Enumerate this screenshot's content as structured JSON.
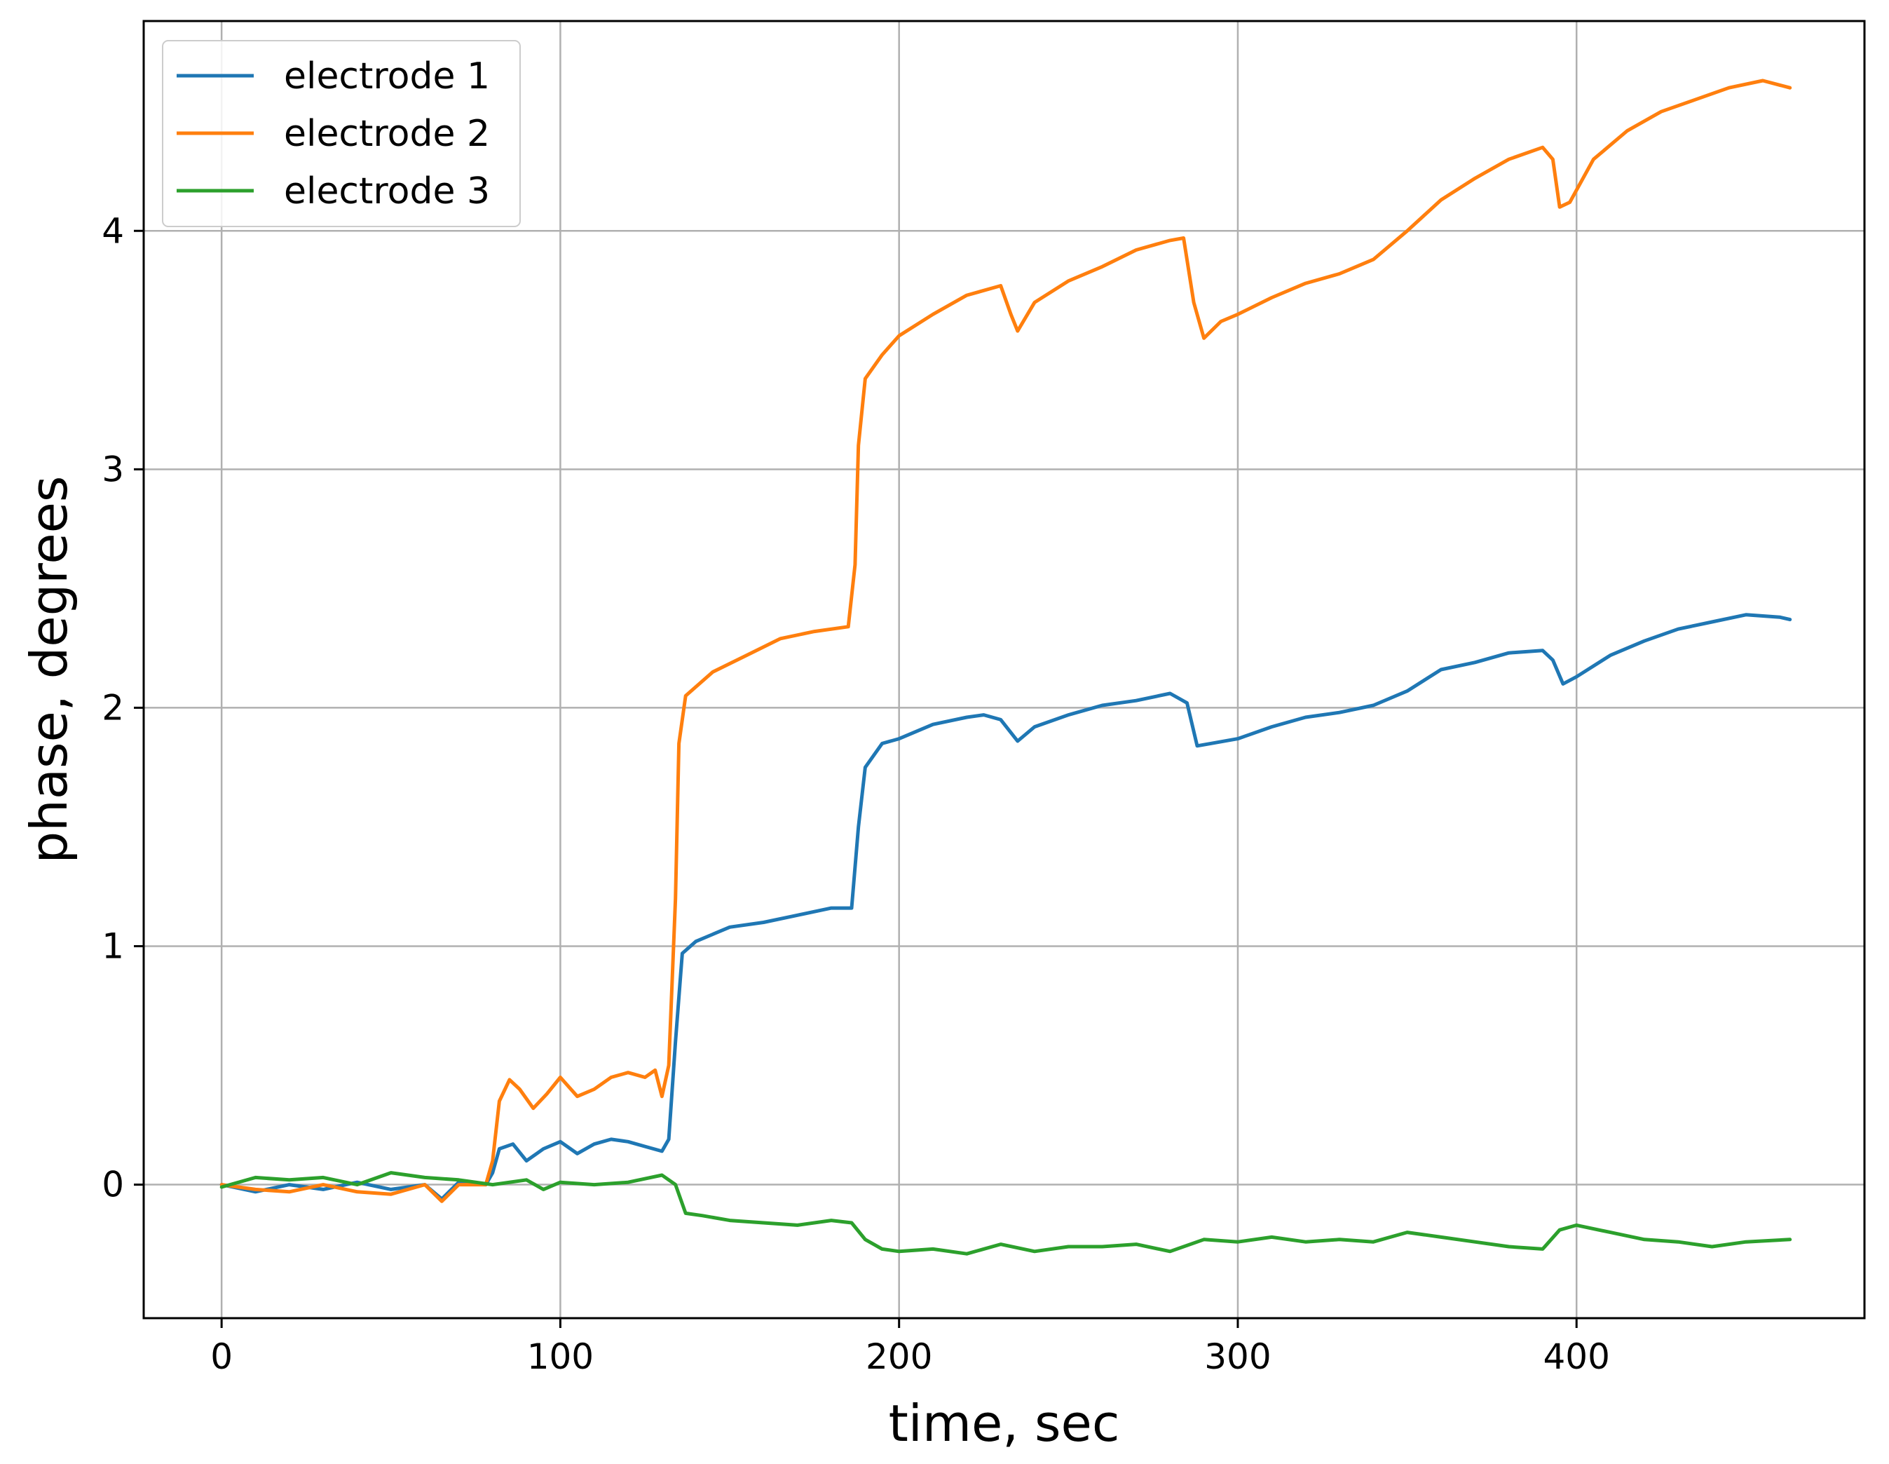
{
  "chart_data": {
    "type": "line",
    "title": "",
    "xlabel": "time, sec",
    "ylabel": "phase, degrees",
    "xlim": [
      -23,
      485
    ],
    "ylim": [
      -0.56,
      4.88
    ],
    "x_ticks": [
      0,
      100,
      200,
      300,
      400
    ],
    "y_ticks": [
      0,
      1,
      2,
      3,
      4
    ],
    "grid": true,
    "legend_position": "upper-left",
    "series": [
      {
        "name": "electrode 1",
        "color": "#1f77b4",
        "points": [
          [
            0,
            0.0
          ],
          [
            10,
            -0.03
          ],
          [
            20,
            0.0
          ],
          [
            30,
            -0.02
          ],
          [
            40,
            0.01
          ],
          [
            50,
            -0.02
          ],
          [
            60,
            0.0
          ],
          [
            65,
            -0.06
          ],
          [
            70,
            0.01
          ],
          [
            78,
            0.0
          ],
          [
            80,
            0.05
          ],
          [
            82,
            0.15
          ],
          [
            86,
            0.17
          ],
          [
            90,
            0.1
          ],
          [
            95,
            0.15
          ],
          [
            100,
            0.18
          ],
          [
            105,
            0.13
          ],
          [
            110,
            0.17
          ],
          [
            115,
            0.19
          ],
          [
            120,
            0.18
          ],
          [
            125,
            0.16
          ],
          [
            130,
            0.14
          ],
          [
            132,
            0.19
          ],
          [
            134,
            0.6
          ],
          [
            136,
            0.97
          ],
          [
            140,
            1.02
          ],
          [
            145,
            1.05
          ],
          [
            150,
            1.08
          ],
          [
            160,
            1.1
          ],
          [
            170,
            1.13
          ],
          [
            180,
            1.16
          ],
          [
            186,
            1.16
          ],
          [
            188,
            1.5
          ],
          [
            190,
            1.75
          ],
          [
            195,
            1.85
          ],
          [
            200,
            1.87
          ],
          [
            210,
            1.93
          ],
          [
            220,
            1.96
          ],
          [
            225,
            1.97
          ],
          [
            230,
            1.95
          ],
          [
            235,
            1.86
          ],
          [
            240,
            1.92
          ],
          [
            250,
            1.97
          ],
          [
            260,
            2.01
          ],
          [
            270,
            2.03
          ],
          [
            280,
            2.06
          ],
          [
            285,
            2.02
          ],
          [
            288,
            1.84
          ],
          [
            292,
            1.85
          ],
          [
            300,
            1.87
          ],
          [
            310,
            1.92
          ],
          [
            320,
            1.96
          ],
          [
            330,
            1.98
          ],
          [
            340,
            2.01
          ],
          [
            350,
            2.07
          ],
          [
            360,
            2.16
          ],
          [
            370,
            2.19
          ],
          [
            380,
            2.23
          ],
          [
            390,
            2.24
          ],
          [
            393,
            2.2
          ],
          [
            396,
            2.1
          ],
          [
            400,
            2.13
          ],
          [
            410,
            2.22
          ],
          [
            420,
            2.28
          ],
          [
            430,
            2.33
          ],
          [
            440,
            2.36
          ],
          [
            450,
            2.39
          ],
          [
            460,
            2.38
          ],
          [
            463,
            2.37
          ]
        ]
      },
      {
        "name": "electrode 2",
        "color": "#ff7f0e",
        "points": [
          [
            0,
            0.0
          ],
          [
            10,
            -0.02
          ],
          [
            20,
            -0.03
          ],
          [
            30,
            0.0
          ],
          [
            40,
            -0.03
          ],
          [
            50,
            -0.04
          ],
          [
            60,
            0.0
          ],
          [
            65,
            -0.07
          ],
          [
            70,
            0.0
          ],
          [
            78,
            0.0
          ],
          [
            80,
            0.1
          ],
          [
            82,
            0.35
          ],
          [
            85,
            0.44
          ],
          [
            88,
            0.4
          ],
          [
            92,
            0.32
          ],
          [
            96,
            0.38
          ],
          [
            100,
            0.45
          ],
          [
            105,
            0.37
          ],
          [
            110,
            0.4
          ],
          [
            115,
            0.45
          ],
          [
            120,
            0.47
          ],
          [
            125,
            0.45
          ],
          [
            128,
            0.48
          ],
          [
            130,
            0.37
          ],
          [
            132,
            0.5
          ],
          [
            134,
            1.2
          ],
          [
            135,
            1.85
          ],
          [
            137,
            2.05
          ],
          [
            145,
            2.15
          ],
          [
            155,
            2.22
          ],
          [
            165,
            2.29
          ],
          [
            175,
            2.32
          ],
          [
            185,
            2.34
          ],
          [
            187,
            2.6
          ],
          [
            188,
            3.1
          ],
          [
            190,
            3.38
          ],
          [
            195,
            3.48
          ],
          [
            200,
            3.56
          ],
          [
            210,
            3.65
          ],
          [
            220,
            3.73
          ],
          [
            230,
            3.77
          ],
          [
            233,
            3.65
          ],
          [
            235,
            3.58
          ],
          [
            240,
            3.7
          ],
          [
            250,
            3.79
          ],
          [
            260,
            3.85
          ],
          [
            270,
            3.92
          ],
          [
            280,
            3.96
          ],
          [
            284,
            3.97
          ],
          [
            287,
            3.7
          ],
          [
            290,
            3.55
          ],
          [
            295,
            3.62
          ],
          [
            300,
            3.65
          ],
          [
            310,
            3.72
          ],
          [
            320,
            3.78
          ],
          [
            330,
            3.82
          ],
          [
            340,
            3.88
          ],
          [
            350,
            4.0
          ],
          [
            360,
            4.13
          ],
          [
            370,
            4.22
          ],
          [
            380,
            4.3
          ],
          [
            390,
            4.35
          ],
          [
            393,
            4.3
          ],
          [
            395,
            4.1
          ],
          [
            398,
            4.12
          ],
          [
            405,
            4.3
          ],
          [
            415,
            4.42
          ],
          [
            425,
            4.5
          ],
          [
            435,
            4.55
          ],
          [
            445,
            4.6
          ],
          [
            455,
            4.63
          ],
          [
            463,
            4.6
          ]
        ]
      },
      {
        "name": "electrode 3",
        "color": "#2ca02c",
        "points": [
          [
            0,
            -0.01
          ],
          [
            10,
            0.03
          ],
          [
            20,
            0.02
          ],
          [
            30,
            0.03
          ],
          [
            40,
            0.0
          ],
          [
            50,
            0.05
          ],
          [
            60,
            0.03
          ],
          [
            70,
            0.02
          ],
          [
            80,
            0.0
          ],
          [
            90,
            0.02
          ],
          [
            95,
            -0.02
          ],
          [
            100,
            0.01
          ],
          [
            110,
            0.0
          ],
          [
            120,
            0.01
          ],
          [
            130,
            0.04
          ],
          [
            134,
            0.0
          ],
          [
            137,
            -0.12
          ],
          [
            142,
            -0.13
          ],
          [
            150,
            -0.15
          ],
          [
            160,
            -0.16
          ],
          [
            170,
            -0.17
          ],
          [
            180,
            -0.15
          ],
          [
            186,
            -0.16
          ],
          [
            190,
            -0.23
          ],
          [
            195,
            -0.27
          ],
          [
            200,
            -0.28
          ],
          [
            210,
            -0.27
          ],
          [
            220,
            -0.29
          ],
          [
            230,
            -0.25
          ],
          [
            240,
            -0.28
          ],
          [
            250,
            -0.26
          ],
          [
            260,
            -0.26
          ],
          [
            270,
            -0.25
          ],
          [
            280,
            -0.28
          ],
          [
            290,
            -0.23
          ],
          [
            300,
            -0.24
          ],
          [
            310,
            -0.22
          ],
          [
            320,
            -0.24
          ],
          [
            330,
            -0.23
          ],
          [
            340,
            -0.24
          ],
          [
            350,
            -0.2
          ],
          [
            360,
            -0.22
          ],
          [
            370,
            -0.24
          ],
          [
            380,
            -0.26
          ],
          [
            390,
            -0.27
          ],
          [
            395,
            -0.19
          ],
          [
            400,
            -0.17
          ],
          [
            410,
            -0.2
          ],
          [
            420,
            -0.23
          ],
          [
            430,
            -0.24
          ],
          [
            440,
            -0.26
          ],
          [
            450,
            -0.24
          ],
          [
            463,
            -0.23
          ]
        ]
      }
    ]
  }
}
